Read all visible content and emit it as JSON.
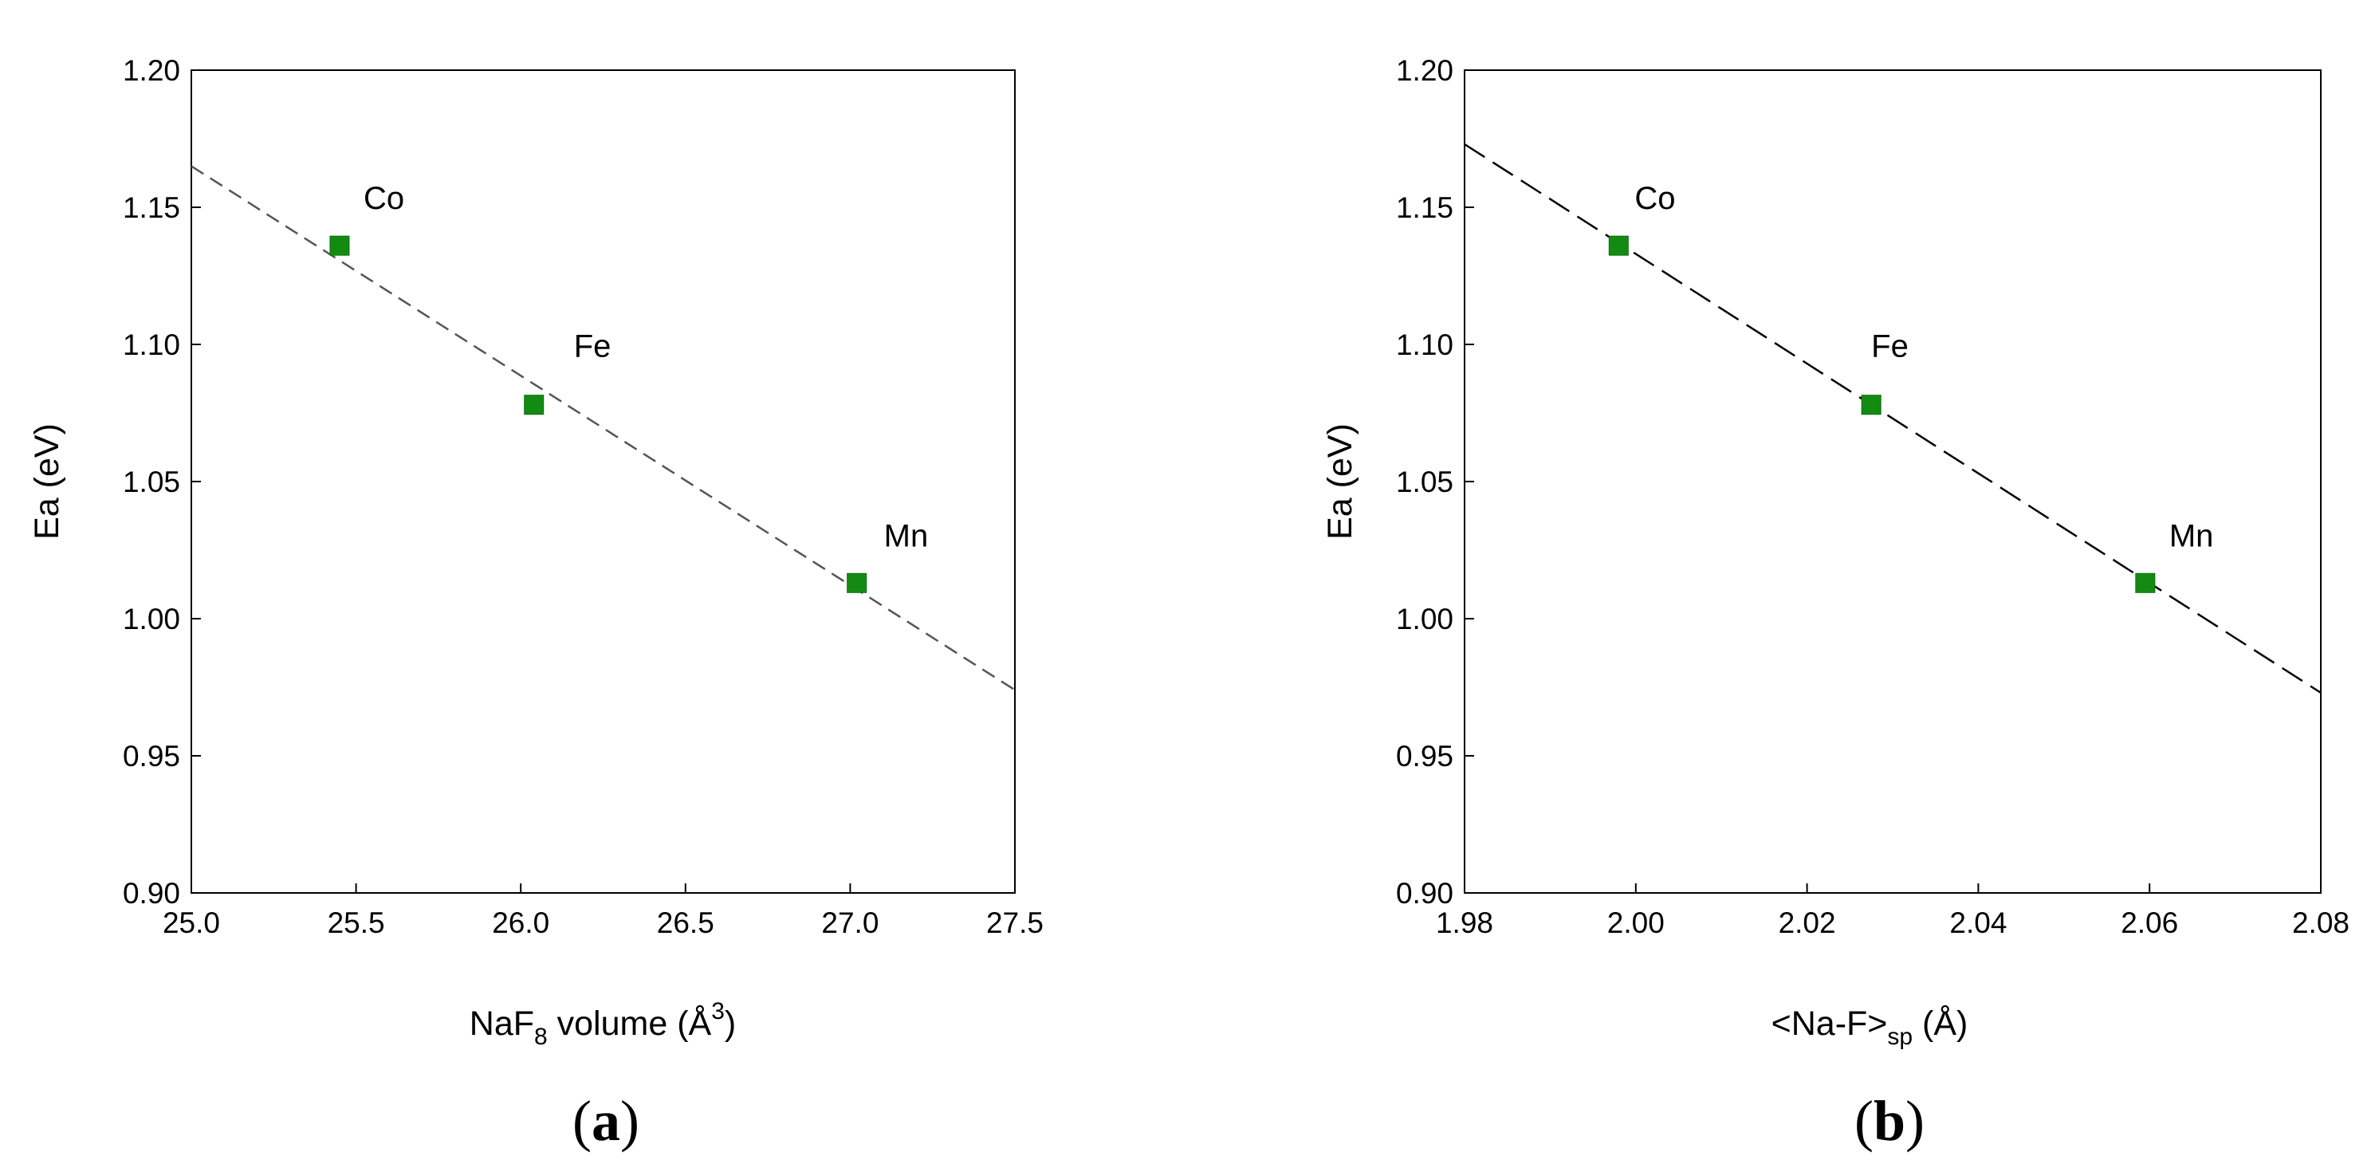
{
  "chart_data": [
    {
      "type": "scatter",
      "caption_open": "(",
      "caption_letter": "a",
      "caption_close": ")",
      "xlabel_pre": "NaF",
      "xlabel_sub": "8",
      "xlabel_mid": " volume (Å",
      "xlabel_sup": "3",
      "xlabel_post": ")",
      "ylabel": "Ea (eV)",
      "xlim": [
        25.0,
        27.5
      ],
      "ylim": [
        0.9,
        1.2
      ],
      "xticks": [
        "25.0",
        "25.5",
        "26.0",
        "26.5",
        "27.0",
        "27.5"
      ],
      "xtick_values": [
        25.0,
        25.5,
        26.0,
        26.5,
        27.0,
        27.5
      ],
      "yticks": [
        "0.90",
        "0.95",
        "1.00",
        "1.05",
        "1.10",
        "1.15",
        "1.20"
      ],
      "ytick_values": [
        0.9,
        0.95,
        1.0,
        1.05,
        1.1,
        1.15,
        1.2
      ],
      "points": [
        {
          "label": "Co",
          "x": 25.45,
          "y": 1.136
        },
        {
          "label": "Fe",
          "x": 26.04,
          "y": 1.078
        },
        {
          "label": "Mn",
          "x": 27.02,
          "y": 1.013
        }
      ],
      "fit_line": {
        "x": [
          25.0,
          27.5
        ],
        "y": [
          1.165,
          0.974
        ],
        "style": "dashed"
      },
      "marker_color": "#138b13",
      "line_color": "#555555"
    },
    {
      "type": "scatter",
      "caption_open": "(",
      "caption_letter": "b",
      "caption_close": ")",
      "xlabel_pre": "<Na-F>",
      "xlabel_sub": "sp",
      "xlabel_post": " (Å)",
      "ylabel": "Ea (eV)",
      "xlim": [
        1.98,
        2.08
      ],
      "ylim": [
        0.9,
        1.2
      ],
      "xticks": [
        "1.98",
        "2.00",
        "2.02",
        "2.04",
        "2.06",
        "2.08"
      ],
      "xtick_values": [
        1.98,
        2.0,
        2.02,
        2.04,
        2.06,
        2.08
      ],
      "yticks": [
        "0.90",
        "0.95",
        "1.00",
        "1.05",
        "1.10",
        "1.15",
        "1.20"
      ],
      "ytick_values": [
        0.9,
        0.95,
        1.0,
        1.05,
        1.1,
        1.15,
        1.2
      ],
      "points": [
        {
          "label": "Co",
          "x": 1.998,
          "y": 1.136
        },
        {
          "label": "Fe",
          "x": 2.0275,
          "y": 1.078
        },
        {
          "label": "Mn",
          "x": 2.0595,
          "y": 1.013
        }
      ],
      "fit_line": {
        "x": [
          1.98,
          2.08
        ],
        "y": [
          1.173,
          0.973
        ],
        "style": "dashed"
      },
      "marker_color": "#138b13",
      "line_color": "#000000"
    }
  ]
}
